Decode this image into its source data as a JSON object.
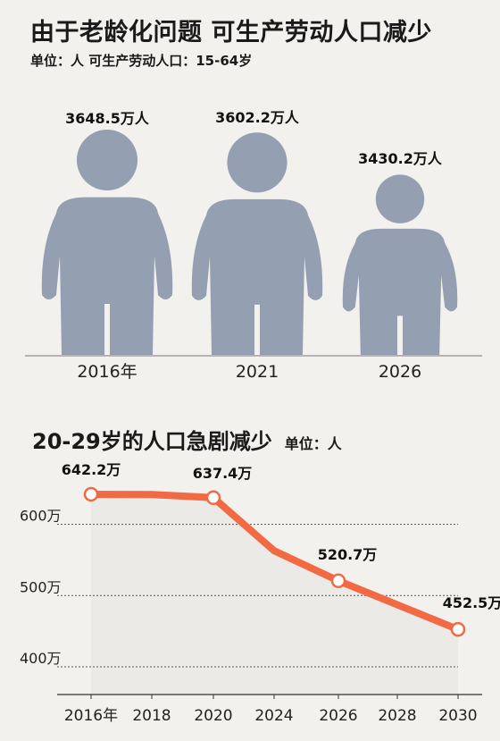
{
  "header": {
    "title": "由于老龄化问题 可生产劳动人口减少",
    "subtitle": "单位：人  可生产劳动人口：15-64岁"
  },
  "colors": {
    "figure": "#94a0b1",
    "line": "#f26a44",
    "grid": "#555555",
    "area": "#eceae6",
    "background": "#f3f1ee"
  },
  "chart_data": [
    {
      "type": "pictogram",
      "categories": [
        "2016年",
        "2021",
        "2026"
      ],
      "values": [
        3648.5,
        3602.2,
        3430.2
      ],
      "value_labels": [
        "3648.5万人",
        "3602.2万人",
        "3430.2万人"
      ],
      "unit": "万人"
    },
    {
      "type": "line",
      "title": "20-29岁的人口急剧减少",
      "unit_label": "单位：人",
      "x_tick_labels": [
        "2016年",
        "2018",
        "2020",
        "2024",
        "2026",
        "2028",
        "2030"
      ],
      "y_tick_labels": [
        "400万",
        "500万",
        "600万"
      ],
      "y_ticks": [
        400,
        500,
        600
      ],
      "ylim": [
        385,
        650
      ],
      "grid": true,
      "series": [
        {
          "points": [
            {
              "x": "2016年",
              "y": 642.2,
              "label": "642.2万",
              "marker": true
            },
            {
              "x": "2018",
              "y": 641.8,
              "label": "",
              "marker": false
            },
            {
              "x": "2020",
              "y": 637.4,
              "label": "637.4万",
              "marker": true
            },
            {
              "x": "2024",
              "y": 563,
              "label": "",
              "marker": false
            },
            {
              "x": "2026",
              "y": 520.7,
              "label": "520.7万",
              "marker": true
            },
            {
              "x": "2030",
              "y": 452.5,
              "label": "452.5万",
              "marker": true
            }
          ]
        }
      ]
    }
  ]
}
